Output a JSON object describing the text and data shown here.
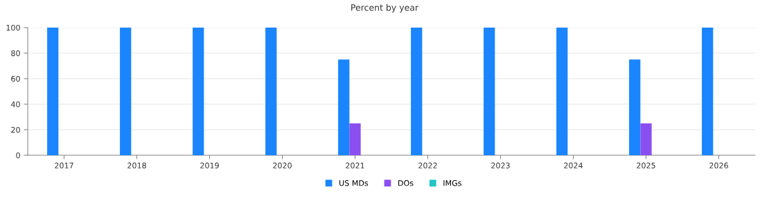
{
  "chart_data": {
    "type": "bar",
    "title": "Percent by year",
    "categories": [
      "2017",
      "2018",
      "2019",
      "2020",
      "2021",
      "2022",
      "2023",
      "2024",
      "2025",
      "2026"
    ],
    "series": [
      {
        "name": "US MDs",
        "color": "#1a85ff",
        "values": [
          100,
          100,
          100,
          100,
          75,
          100,
          100,
          100,
          75,
          100
        ]
      },
      {
        "name": "DOs",
        "color": "#8a4ff0",
        "values": [
          0,
          0,
          0,
          0,
          25,
          0,
          0,
          0,
          25,
          0
        ]
      },
      {
        "name": "IMGs",
        "color": "#22c4c4",
        "values": [
          0,
          0,
          0,
          0,
          0,
          0,
          0,
          0,
          0,
          0
        ]
      }
    ],
    "ylim": [
      0,
      100
    ],
    "yticks": [
      0,
      20,
      40,
      60,
      80,
      100
    ],
    "grid": "y",
    "legend": "bottom"
  }
}
